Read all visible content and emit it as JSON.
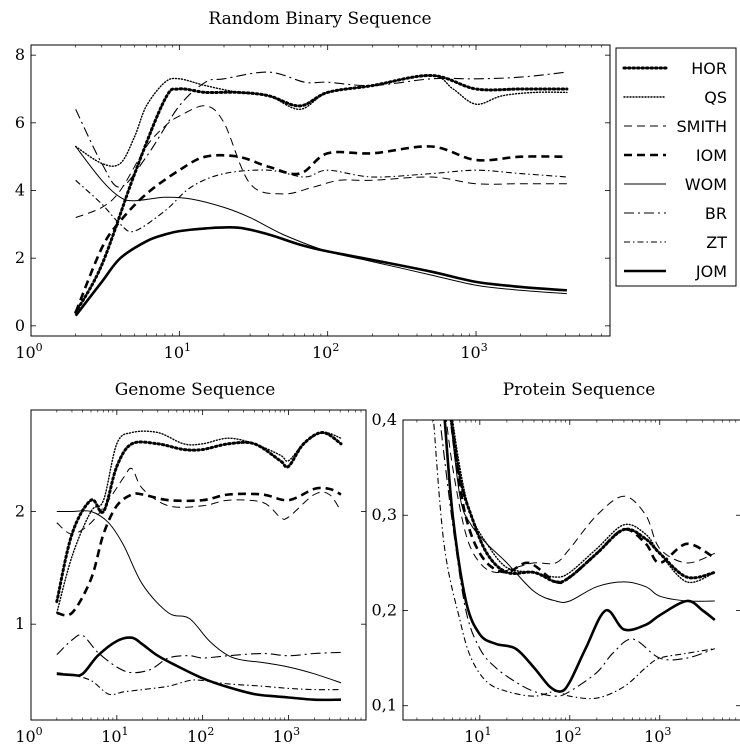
{
  "series_styles": {
    "HOR": {
      "width": 3.0,
      "dash": "1.5 3",
      "cap": "round"
    },
    "QS": {
      "width": 1.4,
      "dash": "1 2",
      "cap": "round"
    },
    "SMITH": {
      "width": 1.0,
      "dash": "8 5",
      "cap": "butt"
    },
    "IOM": {
      "width": 2.6,
      "dash": "8 5",
      "cap": "butt"
    },
    "WOM": {
      "width": 1.0,
      "dash": "",
      "cap": "butt"
    },
    "BR": {
      "width": 1.1,
      "dash": "10 4 2 4",
      "cap": "butt"
    },
    "ZT": {
      "width": 1.1,
      "dash": "6 3 1.5 3",
      "cap": "butt"
    },
    "JOM": {
      "width": 2.6,
      "dash": "",
      "cap": "butt"
    }
  },
  "legend": [
    "HOR",
    "QS",
    "SMITH",
    "IOM",
    "WOM",
    "BR",
    "ZT",
    "JOM"
  ],
  "chart_data": [
    {
      "id": "random",
      "type": "line",
      "title": "Random Binary Sequence",
      "xscale": "log",
      "xlim": [
        1,
        8000
      ],
      "ylim": [
        -0.3,
        8.3
      ],
      "xticks": [
        {
          "v": 1,
          "base": "10",
          "exp": "0"
        },
        {
          "v": 10,
          "base": "10",
          "exp": "1"
        },
        {
          "v": 100,
          "base": "10",
          "exp": "2"
        },
        {
          "v": 1000,
          "base": "10",
          "exp": "3"
        }
      ],
      "yticks": [
        {
          "v": 0,
          "label": "0"
        },
        {
          "v": 2,
          "label": "2"
        },
        {
          "v": 4,
          "label": "4"
        },
        {
          "v": 6,
          "label": "6"
        },
        {
          "v": 8,
          "label": "8"
        }
      ],
      "series": [
        {
          "name": "HOR",
          "x": [
            2,
            3,
            5,
            8,
            10,
            15,
            25,
            40,
            65,
            100,
            200,
            500,
            1000,
            2000,
            4096
          ],
          "y": [
            0.4,
            1.8,
            4.5,
            6.7,
            7.0,
            6.9,
            6.9,
            6.8,
            6.5,
            6.9,
            7.1,
            7.4,
            7.0,
            7.0,
            7.0
          ]
        },
        {
          "name": "QS",
          "x": [
            2,
            3,
            4,
            5,
            6,
            8,
            10,
            15,
            25,
            40,
            65,
            100,
            200,
            500,
            700,
            1000,
            1500,
            2500,
            4096
          ],
          "y": [
            5.3,
            4.8,
            4.8,
            5.6,
            6.5,
            7.2,
            7.3,
            7.1,
            6.9,
            6.8,
            6.4,
            6.9,
            7.1,
            7.4,
            7.0,
            6.55,
            6.8,
            6.9,
            6.9
          ]
        },
        {
          "name": "SMITH",
          "x": [
            2,
            3,
            4,
            6,
            8,
            10,
            15,
            20,
            30,
            50,
            80,
            120,
            200,
            500,
            1000,
            2000,
            4096
          ],
          "y": [
            3.2,
            3.5,
            4.0,
            5.3,
            5.9,
            6.2,
            6.5,
            6.0,
            4.2,
            3.9,
            4.1,
            4.3,
            4.3,
            4.4,
            4.2,
            4.2,
            4.2
          ]
        },
        {
          "name": "IOM",
          "x": [
            2,
            3,
            4,
            6,
            10,
            15,
            25,
            40,
            65,
            100,
            200,
            500,
            1000,
            2000,
            4096
          ],
          "y": [
            0.4,
            2.3,
            3.1,
            3.9,
            4.6,
            5.0,
            5.0,
            4.7,
            4.5,
            5.1,
            5.1,
            5.3,
            4.9,
            5.0,
            5.0
          ]
        },
        {
          "name": "WOM",
          "x": [
            2,
            3,
            4,
            5,
            8,
            12,
            20,
            30,
            50,
            100,
            200,
            500,
            1000,
            2000,
            4096
          ],
          "y": [
            5.3,
            4.3,
            3.8,
            3.7,
            3.8,
            3.75,
            3.5,
            3.2,
            2.7,
            2.2,
            1.9,
            1.5,
            1.2,
            1.05,
            0.95
          ]
        },
        {
          "name": "BR",
          "x": [
            2,
            3,
            4,
            6,
            10,
            15,
            20,
            40,
            70,
            100,
            200,
            500,
            1000,
            2000,
            4096
          ],
          "y": [
            6.4,
            4.8,
            4.1,
            5.0,
            6.5,
            7.2,
            7.3,
            7.5,
            7.2,
            7.2,
            7.1,
            7.3,
            7.3,
            7.35,
            7.5
          ]
        },
        {
          "name": "ZT",
          "x": [
            2,
            3,
            4,
            5,
            8,
            12,
            20,
            40,
            70,
            100,
            200,
            500,
            1000,
            2000,
            4096
          ],
          "y": [
            4.3,
            3.6,
            3.0,
            2.8,
            3.4,
            4.1,
            4.5,
            4.6,
            4.4,
            4.6,
            4.4,
            4.5,
            4.6,
            4.5,
            4.4
          ]
        },
        {
          "name": "JOM",
          "x": [
            2,
            3,
            4,
            6,
            8,
            10,
            15,
            25,
            40,
            65,
            100,
            200,
            500,
            1000,
            2000,
            4096
          ],
          "y": [
            0.3,
            1.3,
            2.0,
            2.5,
            2.7,
            2.8,
            2.88,
            2.9,
            2.7,
            2.4,
            2.2,
            1.95,
            1.6,
            1.3,
            1.15,
            1.05
          ]
        }
      ]
    },
    {
      "id": "genome",
      "type": "line",
      "title": "Genome Sequence",
      "xscale": "log",
      "xlim": [
        1,
        8000
      ],
      "ylim": [
        0.15,
        2.9
      ],
      "xticks": [
        {
          "v": 1,
          "base": "10",
          "exp": "0"
        },
        {
          "v": 10,
          "base": "10",
          "exp": "1"
        },
        {
          "v": 100,
          "base": "10",
          "exp": "2"
        },
        {
          "v": 1000,
          "base": "10",
          "exp": "3"
        }
      ],
      "yticks": [
        {
          "v": 1,
          "label": "1"
        },
        {
          "v": 2,
          "label": "2"
        }
      ],
      "series": [
        {
          "name": "HOR",
          "x": [
            2,
            3,
            5,
            7,
            10,
            15,
            30,
            60,
            100,
            200,
            400,
            800,
            1000,
            1500,
            2500,
            4096
          ],
          "y": [
            1.2,
            1.8,
            2.1,
            2.0,
            2.4,
            2.6,
            2.6,
            2.55,
            2.55,
            2.6,
            2.6,
            2.45,
            2.4,
            2.6,
            2.7,
            2.6
          ]
        },
        {
          "name": "QS",
          "x": [
            2,
            3,
            5,
            7,
            10,
            15,
            30,
            60,
            100,
            200,
            400,
            800,
            1000,
            1500,
            2500,
            4096
          ],
          "y": [
            1.1,
            1.6,
            2.0,
            2.1,
            2.6,
            2.7,
            2.7,
            2.6,
            2.6,
            2.65,
            2.6,
            2.5,
            2.45,
            2.6,
            2.7,
            2.65
          ]
        },
        {
          "name": "SMITH",
          "x": [
            2,
            3,
            5,
            8,
            12,
            15,
            20,
            40,
            100,
            200,
            500,
            800,
            1000,
            2000,
            3000,
            4096
          ],
          "y": [
            1.9,
            1.8,
            1.9,
            2.1,
            2.3,
            2.38,
            2.2,
            2.05,
            2.05,
            2.1,
            2.08,
            1.95,
            1.95,
            2.15,
            2.15,
            2.0
          ]
        },
        {
          "name": "IOM",
          "x": [
            2,
            3,
            5,
            7,
            10,
            15,
            20,
            40,
            100,
            200,
            500,
            1000,
            2000,
            3000,
            4096
          ],
          "y": [
            1.1,
            1.1,
            1.4,
            1.8,
            2.05,
            2.15,
            2.15,
            2.1,
            2.1,
            2.15,
            2.15,
            2.1,
            2.2,
            2.2,
            2.15
          ]
        },
        {
          "name": "WOM",
          "x": [
            2,
            3,
            5,
            8,
            12,
            20,
            40,
            70,
            120,
            200,
            300,
            500,
            1000,
            2000,
            4096
          ],
          "y": [
            2.0,
            2.0,
            2.0,
            1.9,
            1.7,
            1.35,
            1.1,
            1.05,
            0.85,
            0.72,
            0.68,
            0.66,
            0.62,
            0.56,
            0.48
          ]
        },
        {
          "name": "BR",
          "x": [
            2,
            3,
            4,
            6,
            10,
            15,
            25,
            40,
            70,
            100,
            200,
            500,
            1000,
            2000,
            4096
          ],
          "y": [
            0.73,
            0.86,
            0.9,
            0.75,
            0.62,
            0.57,
            0.6,
            0.7,
            0.72,
            0.7,
            0.72,
            0.74,
            0.72,
            0.74,
            0.75
          ]
        },
        {
          "name": "ZT",
          "x": [
            2,
            3,
            5,
            8,
            12,
            20,
            40,
            70,
            100,
            200,
            500,
            1000,
            2000,
            4096
          ],
          "y": [
            0.57,
            0.55,
            0.5,
            0.38,
            0.4,
            0.42,
            0.45,
            0.5,
            0.5,
            0.47,
            0.45,
            0.43,
            0.42,
            0.42
          ]
        },
        {
          "name": "JOM",
          "x": [
            2,
            3,
            4,
            6,
            10,
            15,
            20,
            30,
            50,
            100,
            200,
            400,
            700,
            1000,
            2000,
            4096
          ],
          "y": [
            0.56,
            0.55,
            0.56,
            0.72,
            0.85,
            0.88,
            0.82,
            0.72,
            0.63,
            0.52,
            0.44,
            0.38,
            0.36,
            0.35,
            0.33,
            0.33
          ]
        }
      ]
    },
    {
      "id": "protein",
      "type": "line",
      "title": "Protein Sequence",
      "xscale": "log",
      "xlim": [
        1.4,
        8000
      ],
      "ylim": [
        0.085,
        0.4
      ],
      "xticks": [
        {
          "v": 10,
          "base": "10",
          "exp": "1"
        },
        {
          "v": 100,
          "base": "10",
          "exp": "2"
        },
        {
          "v": 1000,
          "base": "10",
          "exp": "3"
        }
      ],
      "yticks": [
        {
          "v": 0.1,
          "label": "0,1"
        },
        {
          "v": 0.2,
          "label": "0,2"
        },
        {
          "v": 0.3,
          "label": "0,3"
        },
        {
          "v": 0.4,
          "label": "0,4"
        }
      ],
      "series": [
        {
          "name": "HOR",
          "x": [
            4.5,
            6,
            8,
            12,
            20,
            40,
            70,
            100,
            200,
            400,
            700,
            1000,
            2000,
            4096
          ],
          "y": [
            0.42,
            0.34,
            0.3,
            0.26,
            0.24,
            0.24,
            0.23,
            0.235,
            0.26,
            0.285,
            0.275,
            0.26,
            0.235,
            0.24
          ]
        },
        {
          "name": "QS",
          "x": [
            4.5,
            6,
            8,
            12,
            20,
            40,
            70,
            100,
            200,
            400,
            700,
            1000,
            2000,
            4096
          ],
          "y": [
            0.43,
            0.35,
            0.3,
            0.27,
            0.245,
            0.24,
            0.235,
            0.24,
            0.265,
            0.29,
            0.28,
            0.26,
            0.23,
            0.24
          ]
        },
        {
          "name": "SMITH",
          "x": [
            4,
            5,
            7,
            10,
            15,
            25,
            40,
            70,
            100,
            200,
            400,
            700,
            1000,
            2000,
            4096
          ],
          "y": [
            0.42,
            0.35,
            0.28,
            0.25,
            0.24,
            0.245,
            0.25,
            0.25,
            0.265,
            0.3,
            0.32,
            0.3,
            0.265,
            0.25,
            0.26
          ]
        },
        {
          "name": "IOM",
          "x": [
            4.5,
            6,
            8,
            12,
            20,
            35,
            70,
            100,
            200,
            400,
            700,
            1000,
            2000,
            4096
          ],
          "y": [
            0.42,
            0.33,
            0.28,
            0.25,
            0.24,
            0.25,
            0.23,
            0.235,
            0.26,
            0.285,
            0.27,
            0.25,
            0.27,
            0.255
          ]
        },
        {
          "name": "WOM",
          "x": [
            4.5,
            6,
            8,
            12,
            20,
            40,
            70,
            100,
            200,
            400,
            700,
            1000,
            2000,
            4096
          ],
          "y": [
            0.42,
            0.32,
            0.29,
            0.27,
            0.25,
            0.22,
            0.21,
            0.21,
            0.225,
            0.23,
            0.225,
            0.215,
            0.21,
            0.21
          ]
        },
        {
          "name": "BR",
          "x": [
            3.5,
            5,
            7,
            10,
            15,
            25,
            40,
            70,
            100,
            200,
            300,
            500,
            1000,
            2000,
            4096
          ],
          "y": [
            0.41,
            0.29,
            0.2,
            0.16,
            0.14,
            0.125,
            0.115,
            0.11,
            0.115,
            0.135,
            0.155,
            0.17,
            0.15,
            0.15,
            0.16
          ]
        },
        {
          "name": "ZT",
          "x": [
            3,
            4,
            6,
            8,
            12,
            20,
            40,
            70,
            100,
            200,
            400,
            700,
            1000,
            2000,
            4096
          ],
          "y": [
            0.41,
            0.27,
            0.19,
            0.15,
            0.125,
            0.115,
            0.11,
            0.115,
            0.11,
            0.108,
            0.12,
            0.14,
            0.15,
            0.155,
            0.16
          ]
        },
        {
          "name": "JOM",
          "x": [
            4,
            5,
            7,
            10,
            15,
            25,
            40,
            60,
            80,
            100,
            150,
            250,
            400,
            700,
            1000,
            2000,
            3000,
            4096
          ],
          "y": [
            0.41,
            0.3,
            0.21,
            0.175,
            0.165,
            0.16,
            0.14,
            0.12,
            0.115,
            0.125,
            0.16,
            0.2,
            0.18,
            0.185,
            0.195,
            0.21,
            0.2,
            0.19
          ]
        }
      ]
    }
  ]
}
